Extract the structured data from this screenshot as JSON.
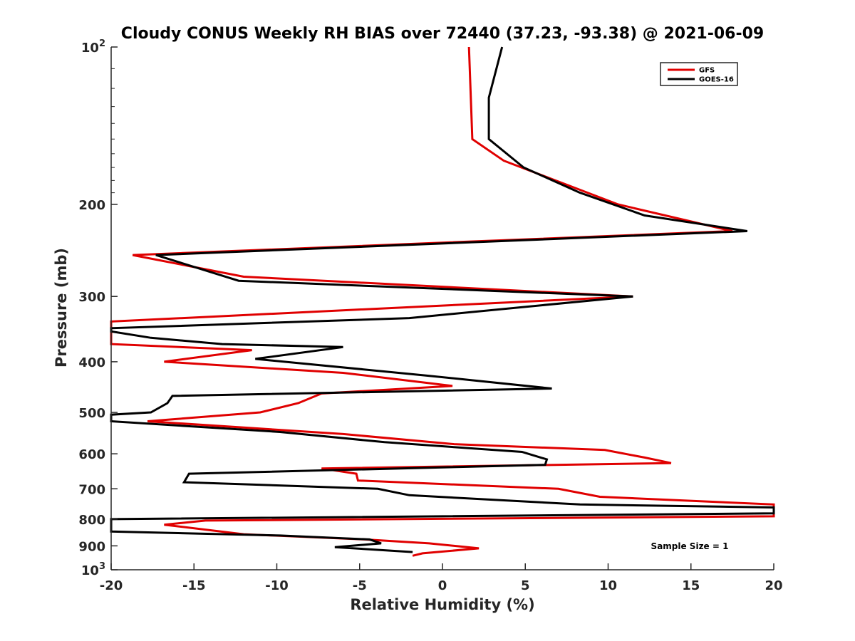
{
  "chart_data": {
    "type": "line",
    "title": "Cloudy CONUS Weekly RH BIAS over 72440 (37.23, -93.38) @ 2021-06-09",
    "xlabel": "Relative Humidity (%)",
    "ylabel": "Pressure (mb)",
    "xlim": [
      -20,
      20
    ],
    "ylim": [
      100,
      1000
    ],
    "y_scale": "log",
    "y_reversed": true,
    "grid": false,
    "legend_position": "top-right",
    "x_ticks": [
      "-20",
      "-15",
      "-10",
      "-5",
      "0",
      "5",
      "10",
      "15",
      "20"
    ],
    "y_ticks": [
      {
        "value": 100,
        "base": "10",
        "exp": "2"
      },
      {
        "value": 200,
        "label": "200"
      },
      {
        "value": 300,
        "label": "300"
      },
      {
        "value": 400,
        "label": "400"
      },
      {
        "value": 500,
        "label": "500"
      },
      {
        "value": 600,
        "label": "600"
      },
      {
        "value": 700,
        "label": "700"
      },
      {
        "value": 800,
        "label": "800"
      },
      {
        "value": 900,
        "label": "900"
      },
      {
        "value": 1000,
        "base": "10",
        "exp": "3"
      }
    ],
    "annotation": "Sample Size = 1",
    "series": [
      {
        "name": "GFS",
        "color": "#e00000",
        "points": [
          [
            1.6,
            100
          ],
          [
            1.8,
            150
          ],
          [
            3.7,
            165
          ],
          [
            10.6,
            200
          ],
          [
            17.5,
            225
          ],
          [
            -18.7,
            250
          ],
          [
            -12,
            275
          ],
          [
            11.5,
            300
          ],
          [
            -20,
            335
          ],
          [
            -20,
            370
          ],
          [
            -11.5,
            380
          ],
          [
            -16.8,
            400
          ],
          [
            -6,
            420
          ],
          [
            0.6,
            445
          ],
          [
            -7.3,
            460
          ],
          [
            -8.7,
            480
          ],
          [
            -11,
            500
          ],
          [
            -17.8,
            520
          ],
          [
            -6,
            550
          ],
          [
            0.7,
            575
          ],
          [
            9.8,
            590
          ],
          [
            12.2,
            610
          ],
          [
            13.8,
            625
          ],
          [
            -7.3,
            640
          ],
          [
            -5.2,
            655
          ],
          [
            -5.1,
            675
          ],
          [
            7,
            700
          ],
          [
            9.5,
            725
          ],
          [
            20,
            750
          ],
          [
            20,
            790
          ],
          [
            -14.3,
            805
          ],
          [
            -16.8,
            820
          ],
          [
            -12,
            855
          ],
          [
            -4.7,
            875
          ],
          [
            -0.8,
            890
          ],
          [
            2.2,
            910
          ],
          [
            -1.2,
            930
          ],
          [
            -1.8,
            940
          ]
        ]
      },
      {
        "name": "GOES-16",
        "color": "#000000",
        "points": [
          [
            3.6,
            100
          ],
          [
            2.8,
            125
          ],
          [
            2.8,
            150
          ],
          [
            4.9,
            170
          ],
          [
            8.3,
            190
          ],
          [
            12.2,
            210
          ],
          [
            18.4,
            225
          ],
          [
            -17.3,
            250
          ],
          [
            -12.3,
            280
          ],
          [
            11.5,
            300
          ],
          [
            -2,
            330
          ],
          [
            -20,
            345
          ],
          [
            -20,
            350
          ],
          [
            -17.6,
            360
          ],
          [
            -13.3,
            370
          ],
          [
            -6,
            375
          ],
          [
            -11.3,
            395
          ],
          [
            -1,
            425
          ],
          [
            6.6,
            450
          ],
          [
            -16.3,
            465
          ],
          [
            -16.6,
            480
          ],
          [
            -17.6,
            500
          ],
          [
            -20,
            505
          ],
          [
            -20,
            520
          ],
          [
            -9.8,
            545
          ],
          [
            -3.5,
            570
          ],
          [
            4.8,
            595
          ],
          [
            6.3,
            615
          ],
          [
            6.2,
            630
          ],
          [
            -15.3,
            655
          ],
          [
            -15.6,
            680
          ],
          [
            -3.9,
            700
          ],
          [
            -2,
            720
          ],
          [
            8.3,
            750
          ],
          [
            20,
            760
          ],
          [
            20,
            780
          ],
          [
            -20,
            800
          ],
          [
            -20,
            845
          ],
          [
            -9.8,
            860
          ],
          [
            -4.4,
            875
          ],
          [
            -3.7,
            890
          ],
          [
            -6.5,
            905
          ],
          [
            -1.8,
            925
          ]
        ]
      }
    ]
  }
}
